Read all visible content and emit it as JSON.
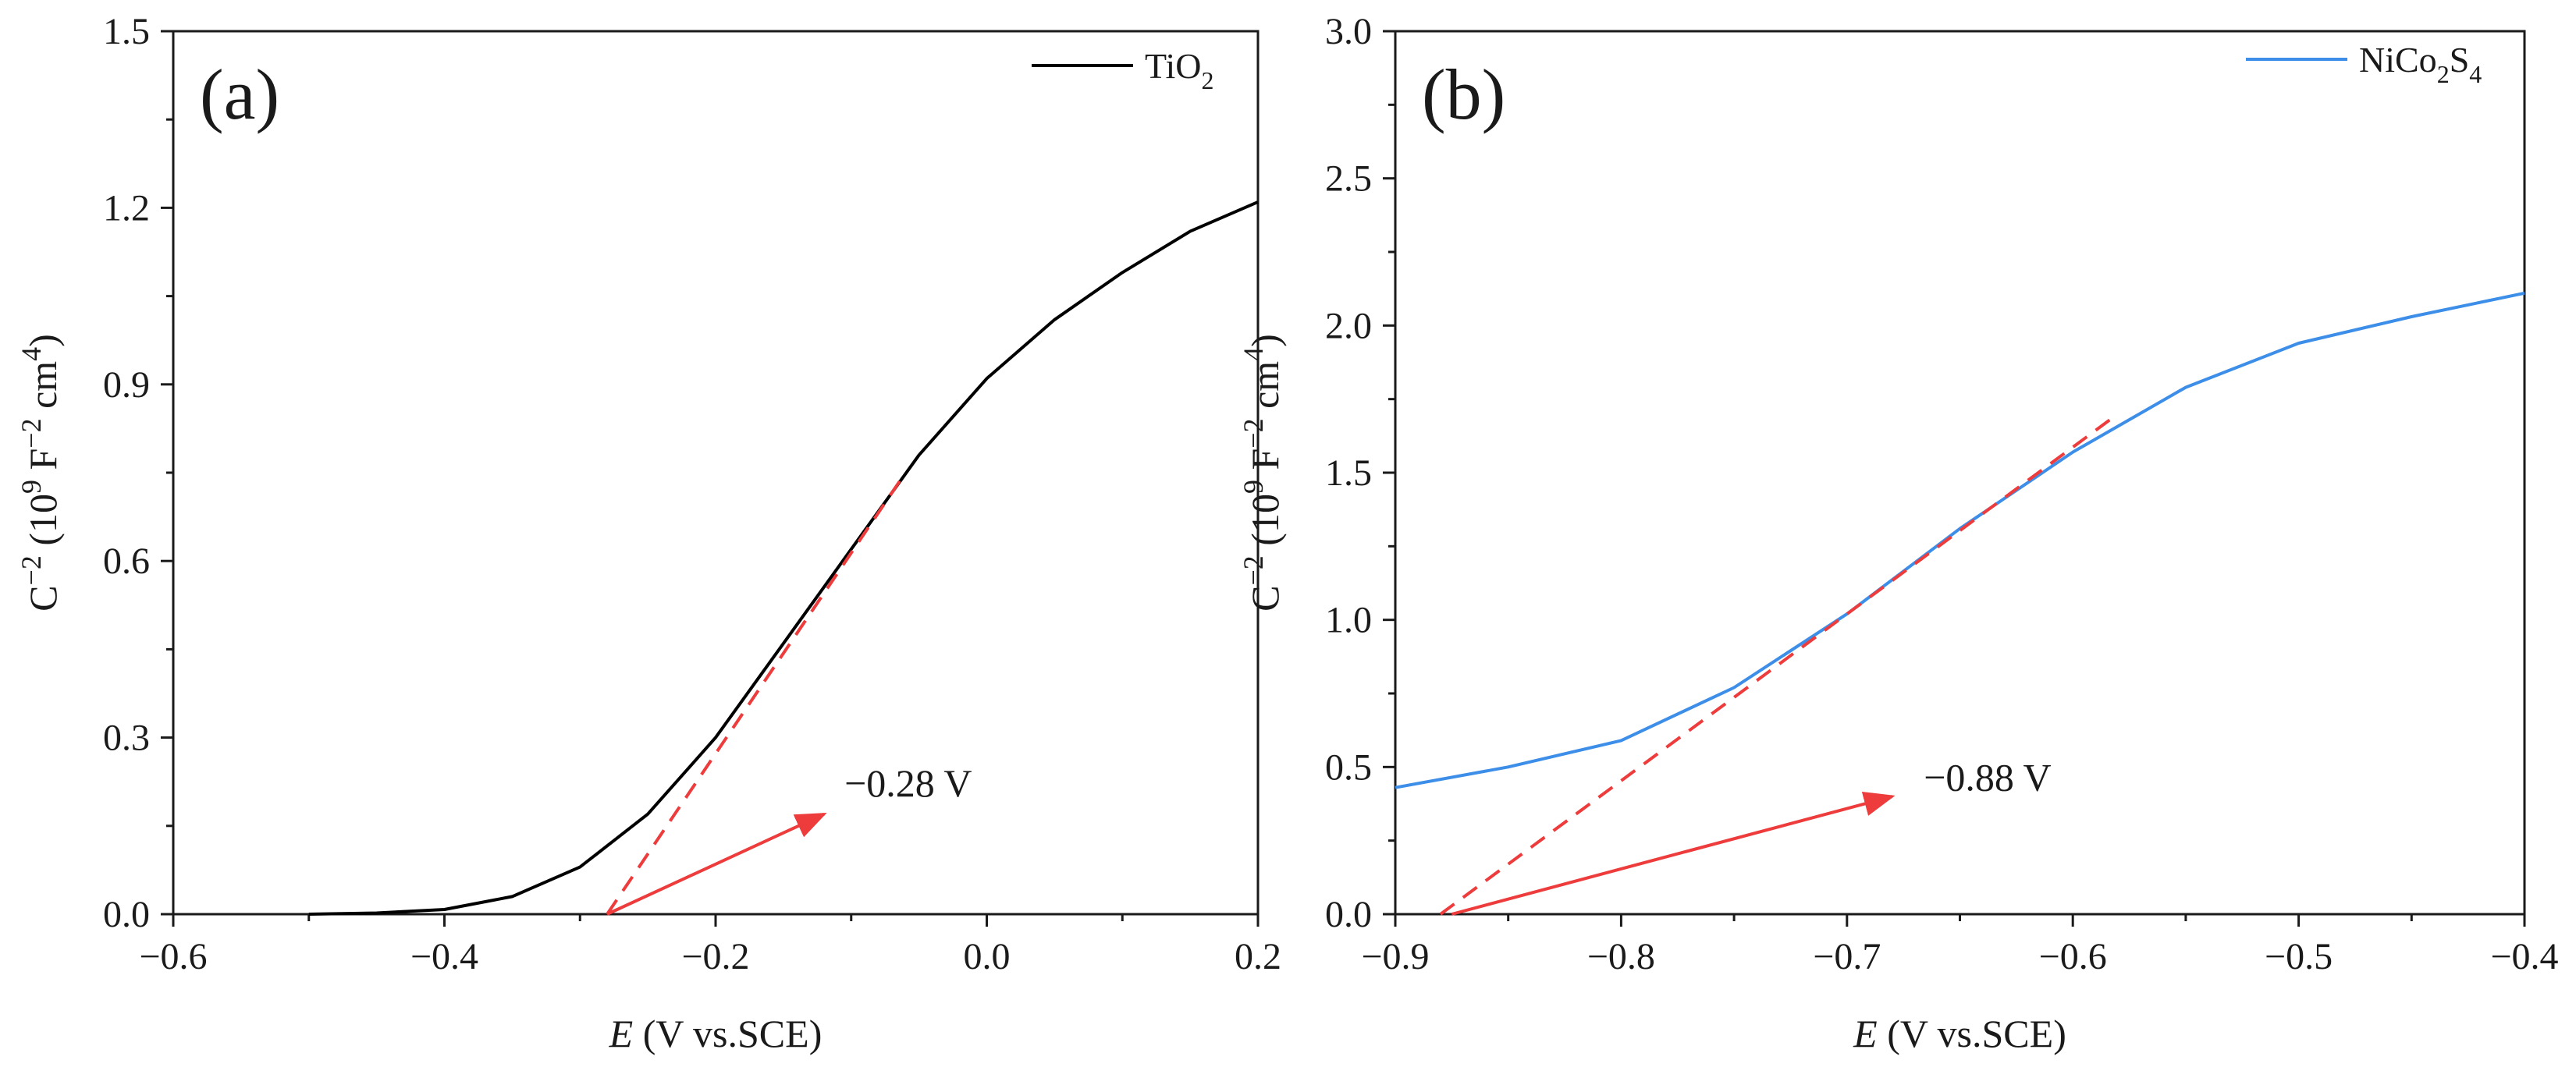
{
  "chart_data": [
    {
      "type": "line",
      "panel_label": "(a)",
      "xlabel": {
        "symbol": "E",
        "rest": " (V vs.SCE)"
      },
      "ylabel": {
        "c": "C",
        "c_exp": "−2",
        "open": " (10",
        "p_exp": "9",
        "f": " F",
        "f_exp": "−2",
        "cm": " cm",
        "cm_exp": "4",
        "close": ")"
      },
      "xlim": [
        -0.6,
        0.2
      ],
      "ylim": [
        0,
        1.5
      ],
      "xticks": [
        -0.6,
        -0.4,
        -0.2,
        0.0,
        0.2
      ],
      "xtick_labels": [
        "−0.6",
        "−0.4",
        "−0.2",
        "0.0",
        "0.2"
      ],
      "yticks": [
        0,
        0.3,
        0.6,
        0.9,
        1.2,
        1.5
      ],
      "ytick_labels": [
        "0.0",
        "0.3",
        "0.6",
        "0.9",
        "1.2",
        "1.5"
      ],
      "legend_position": "top-right",
      "series": [
        {
          "name": "TiO2",
          "name_base": "TiO",
          "name_sub": "2",
          "color": "#000000",
          "x": [
            -0.5,
            -0.45,
            -0.4,
            -0.35,
            -0.3,
            -0.25,
            -0.2,
            -0.15,
            -0.1,
            -0.05,
            0.0,
            0.05,
            0.1,
            0.15,
            0.2
          ],
          "y": [
            0.0,
            0.002,
            0.008,
            0.03,
            0.08,
            0.17,
            0.3,
            0.46,
            0.62,
            0.78,
            0.91,
            1.01,
            1.09,
            1.16,
            1.21
          ]
        }
      ],
      "fit_line": {
        "color": "#ee3b3b",
        "x": [
          -0.28,
          -0.06
        ],
        "y": [
          0.0,
          0.75
        ]
      },
      "annotation": {
        "text": "−0.28 V",
        "color": "#ee3b3b",
        "arrow_from": [
          -0.28,
          0.0
        ],
        "arrow_to": [
          -0.12,
          0.17
        ],
        "text_at": [
          -0.105,
          0.2
        ]
      }
    },
    {
      "type": "line",
      "panel_label": "(b)",
      "xlabel": {
        "symbol": "E",
        "rest": " (V vs.SCE)"
      },
      "ylabel": {
        "c": "C",
        "c_exp": "−2",
        "open": " (10",
        "p_exp": "9",
        "f": " F",
        "f_exp": "−2",
        "cm": " cm",
        "cm_exp": "4",
        "close": ")"
      },
      "xlim": [
        -0.9,
        -0.4
      ],
      "ylim": [
        0,
        3.0
      ],
      "xticks": [
        -0.9,
        -0.8,
        -0.7,
        -0.6,
        -0.5,
        -0.4
      ],
      "xtick_labels": [
        "−0.9",
        "−0.8",
        "−0.7",
        "−0.6",
        "−0.5",
        "−0.4"
      ],
      "yticks": [
        0,
        0.5,
        1.0,
        1.5,
        2.0,
        2.5,
        3.0
      ],
      "ytick_labels": [
        "0.0",
        "0.5",
        "1.0",
        "1.5",
        "2.0",
        "2.5",
        "3.0"
      ],
      "legend_position": "top-right",
      "series": [
        {
          "name": "NiCo2S4",
          "name_parts": [
            "NiCo",
            "2",
            "S",
            "4"
          ],
          "color": "#3c8ee8",
          "x": [
            -0.9,
            -0.85,
            -0.8,
            -0.75,
            -0.7,
            -0.65,
            -0.6,
            -0.55,
            -0.5,
            -0.45,
            -0.4
          ],
          "y": [
            0.43,
            0.5,
            0.59,
            0.77,
            1.02,
            1.31,
            1.57,
            1.79,
            1.94,
            2.03,
            2.11
          ]
        }
      ],
      "fit_line": {
        "color": "#ee3b3b",
        "x": [
          -0.88,
          -0.58
        ],
        "y": [
          0.0,
          1.7
        ]
      },
      "annotation": {
        "text": "−0.88 V",
        "color": "#ee3b3b",
        "arrow_from": [
          -0.875,
          0.0
        ],
        "arrow_to": [
          -0.68,
          0.4
        ],
        "text_at": [
          -0.666,
          0.42
        ]
      }
    }
  ]
}
